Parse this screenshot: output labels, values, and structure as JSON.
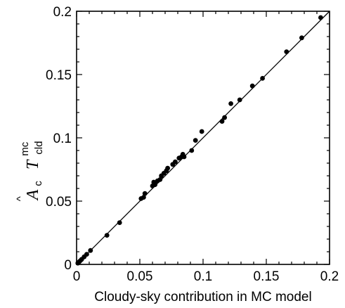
{
  "chart_data": {
    "type": "scatter",
    "xlabel": "Cloudy-sky contribution in MC model",
    "ylabel": {
      "hat": "^",
      "A": "A",
      "A_sub": "c",
      "T": "T",
      "T_sup": "mc",
      "T_sub": "cld"
    },
    "xlim": [
      0,
      0.2
    ],
    "ylim": [
      0,
      0.2
    ],
    "x_ticks": [
      "0",
      "0.05",
      "0.1",
      "0.15",
      "0.2"
    ],
    "y_ticks": [
      "0",
      "0.05",
      "0.1",
      "0.15",
      "0.2"
    ],
    "grid": false,
    "reference_line": {
      "from": [
        0,
        0
      ],
      "to": [
        0.2,
        0.2
      ]
    },
    "series": [
      {
        "points": [
          [
            0.001,
            0.001
          ],
          [
            0.002,
            0.002
          ],
          [
            0.003,
            0.003
          ],
          [
            0.004,
            0.004
          ],
          [
            0.006,
            0.006
          ],
          [
            0.008,
            0.008
          ],
          [
            0.011,
            0.011
          ],
          [
            0.024,
            0.023
          ],
          [
            0.034,
            0.033
          ],
          [
            0.051,
            0.052
          ],
          [
            0.053,
            0.053
          ],
          [
            0.054,
            0.056
          ],
          [
            0.06,
            0.062
          ],
          [
            0.061,
            0.065
          ],
          [
            0.062,
            0.063
          ],
          [
            0.064,
            0.066
          ],
          [
            0.066,
            0.067
          ],
          [
            0.067,
            0.07
          ],
          [
            0.069,
            0.072
          ],
          [
            0.071,
            0.074
          ],
          [
            0.072,
            0.076
          ],
          [
            0.076,
            0.079
          ],
          [
            0.078,
            0.081
          ],
          [
            0.081,
            0.084
          ],
          [
            0.083,
            0.085
          ],
          [
            0.084,
            0.087
          ],
          [
            0.085,
            0.085
          ],
          [
            0.091,
            0.09
          ],
          [
            0.094,
            0.098
          ],
          [
            0.099,
            0.105
          ],
          [
            0.115,
            0.113
          ],
          [
            0.117,
            0.116
          ],
          [
            0.122,
            0.127
          ],
          [
            0.129,
            0.13
          ],
          [
            0.139,
            0.141
          ],
          [
            0.147,
            0.147
          ],
          [
            0.166,
            0.168
          ],
          [
            0.178,
            0.179
          ],
          [
            0.193,
            0.195
          ]
        ]
      }
    ]
  }
}
